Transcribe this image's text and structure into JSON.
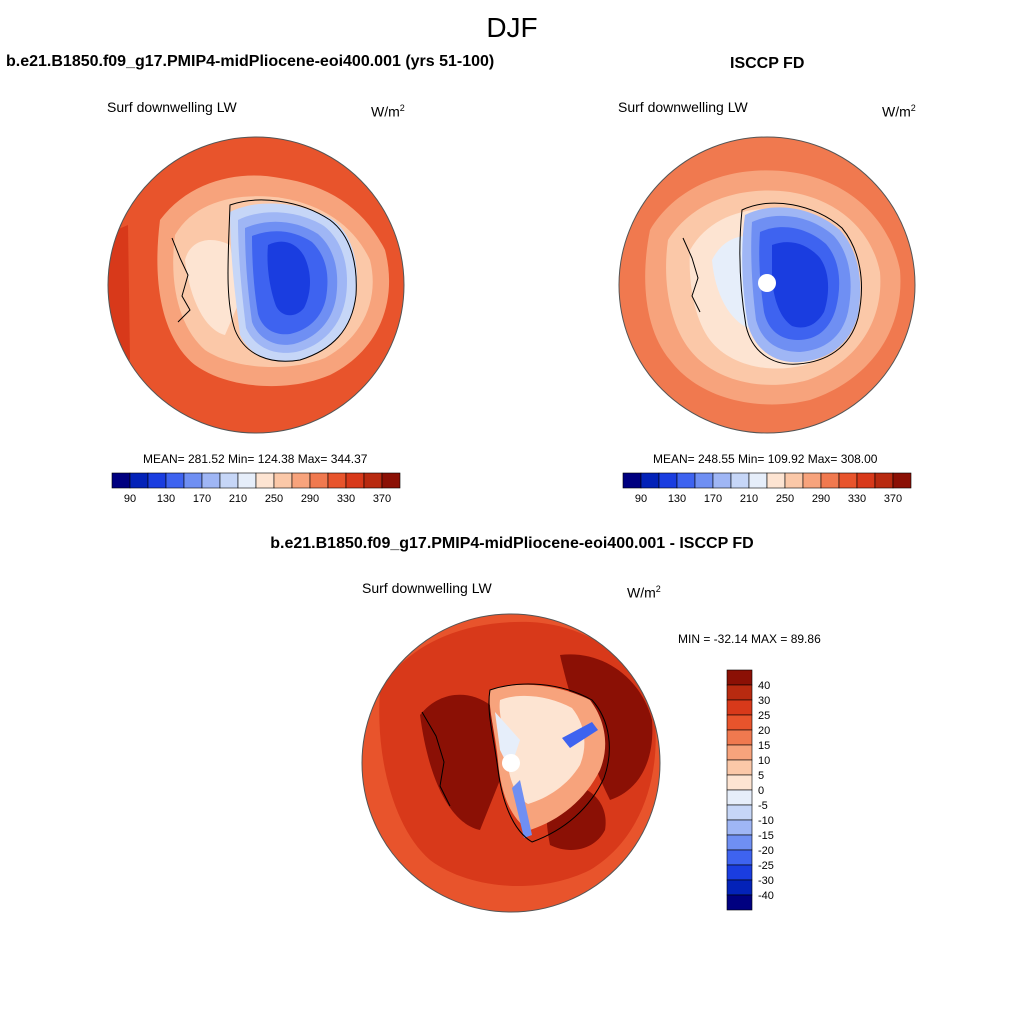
{
  "figure": {
    "title": "DJF"
  },
  "colors": {
    "level_palette": [
      "#000080",
      "#0322b8",
      "#1a3de0",
      "#3e63f0",
      "#6f8ff3",
      "#9fb6f5",
      "#c6d6f7",
      "#e6eefa",
      "#fde4d2",
      "#fbc8a8",
      "#f7a37c",
      "#f0794f",
      "#e8542c",
      "#d8391a",
      "#b82a10",
      "#8b1005"
    ],
    "land_outline": "#000000",
    "map_edge": "#555555"
  },
  "panels": {
    "left": {
      "title": "b.e21.B1850.f09_g17.PMIP4-midPliocene-eoi400.001 (yrs 51-100)",
      "variable": "Surf downwelling LW",
      "units": "W/m",
      "units_exp": "2",
      "stats": "MEAN= 281.52  Min= 124.38  Max= 344.37"
    },
    "right": {
      "title": "ISCCP FD",
      "variable": "Surf downwelling LW",
      "units": "W/m",
      "units_exp": "2",
      "stats": "MEAN= 248.55  Min= 109.92  Max= 308.00"
    },
    "diff": {
      "title": "b.e21.B1850.f09_g17.PMIP4-midPliocene-eoi400.001 - ISCCP FD",
      "variable": "Surf downwelling LW",
      "units": "W/m",
      "units_exp": "2",
      "stats": "MIN = -32.14 MAX =  89.86"
    }
  },
  "chart_data": [
    {
      "type": "heatmap",
      "projection": "south-polar-stereographic",
      "title": "b.e21.B1850.f09_g17.PMIP4-midPliocene-eoi400.001 (yrs 51-100)",
      "variable": "Surf downwelling LW",
      "units": "W/m2",
      "mean": 281.52,
      "min": 124.38,
      "max": 344.37,
      "colorbar_levels": [
        90,
        110,
        130,
        150,
        170,
        190,
        210,
        230,
        250,
        270,
        290,
        310,
        330,
        350,
        370
      ],
      "colorbar_labels": [
        "90",
        "130",
        "170",
        "210",
        "250",
        "290",
        "330",
        "370"
      ],
      "legend": "horizontal-bottom"
    },
    {
      "type": "heatmap",
      "projection": "south-polar-stereographic",
      "title": "ISCCP FD",
      "variable": "Surf downwelling LW",
      "units": "W/m2",
      "mean": 248.55,
      "min": 109.92,
      "max": 308.0,
      "colorbar_levels": [
        90,
        110,
        130,
        150,
        170,
        190,
        210,
        230,
        250,
        270,
        290,
        310,
        330,
        350,
        370
      ],
      "colorbar_labels": [
        "90",
        "130",
        "170",
        "210",
        "250",
        "290",
        "330",
        "370"
      ],
      "legend": "horizontal-bottom"
    },
    {
      "type": "heatmap",
      "projection": "south-polar-stereographic",
      "title": "b.e21.B1850.f09_g17.PMIP4-midPliocene-eoi400.001 - ISCCP FD",
      "variable": "Surf downwelling LW",
      "units": "W/m2",
      "min": -32.14,
      "max": 89.86,
      "colorbar_levels": [
        40,
        30,
        25,
        20,
        15,
        10,
        5,
        0,
        -5,
        -10,
        -15,
        -20,
        -25,
        -30,
        -40
      ],
      "colorbar_labels": [
        "40",
        "30",
        "25",
        "20",
        "15",
        "10",
        "5",
        "0",
        "-5",
        "-10",
        "-15",
        "-20",
        "-25",
        "-30",
        "-40"
      ],
      "legend": "vertical-right"
    }
  ]
}
